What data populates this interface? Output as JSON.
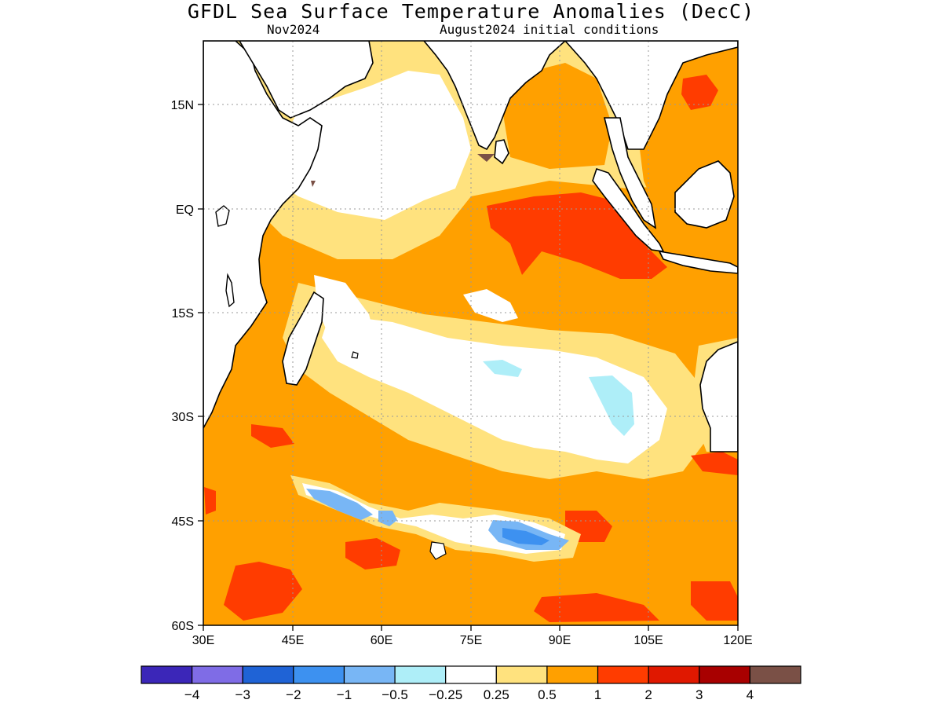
{
  "header": {
    "title": "GFDL Sea Surface Temperature Anomalies (DecC)",
    "valid_month": "Nov2024",
    "init": "August2024 initial conditions"
  },
  "axes": {
    "lon_ticks": [
      "30E",
      "45E",
      "60E",
      "75E",
      "90E",
      "105E",
      "120E"
    ],
    "lat_ticks": [
      "15N",
      "EQ",
      "15S",
      "30S",
      "45S",
      "60S"
    ],
    "lon_range": [
      30,
      120
    ],
    "lat_range": [
      -60,
      24
    ]
  },
  "colorbar": {
    "colors": [
      "#3b26b8",
      "#7f6ce6",
      "#1f63d6",
      "#3d91f0",
      "#78b6f5",
      "#aeeef8",
      "#ffffff",
      "#ffe27e",
      "#ffa000",
      "#ff3c00",
      "#e01800",
      "#a80000",
      "#7a5046"
    ],
    "labels": [
      "−4",
      "−3",
      "−2",
      "−1",
      "−0.5",
      "−0.25",
      "0.25",
      "0.5",
      "1",
      "2",
      "3",
      "4"
    ]
  },
  "palette": {
    "white": "#ffffff",
    "light_yellow": "#ffe27e",
    "orange": "#ffa000",
    "red_orange": "#ff3c00",
    "red": "#e01800",
    "light_blue": "#aeeef8",
    "blue": "#78b6f5",
    "mid_blue": "#3d91f0",
    "brown": "#7a5046"
  }
}
